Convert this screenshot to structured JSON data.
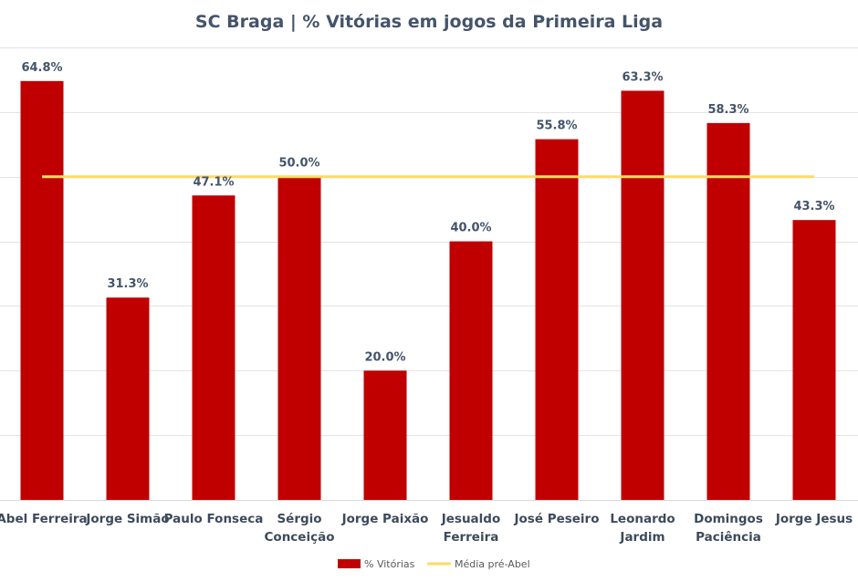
{
  "chart_data": {
    "type": "bar",
    "title": "SC Braga | % Vitórias em jogos da Primeira Liga",
    "categories": [
      [
        "Abel Ferreira"
      ],
      [
        "Jorge Simão"
      ],
      [
        "Paulo Fonseca"
      ],
      [
        "Sérgio",
        "Conceição"
      ],
      [
        "Jorge Paixão"
      ],
      [
        "Jesualdo",
        "Ferreira"
      ],
      [
        "José Peseiro"
      ],
      [
        "Leonardo",
        "Jardim"
      ],
      [
        "Domingos",
        "Paciência"
      ],
      [
        "Jorge Jesus"
      ]
    ],
    "series": [
      {
        "name": "% Vitórias",
        "type": "bar",
        "color": "#c00000",
        "values": [
          64.8,
          31.3,
          47.1,
          50.0,
          20.0,
          40.0,
          55.8,
          63.3,
          58.3,
          43.3
        ],
        "labels": [
          "64.8%",
          "31.3%",
          "47.1%",
          "50.0%",
          "20.0%",
          "40.0%",
          "55.8%",
          "63.3%",
          "58.3%",
          "43.3%"
        ]
      },
      {
        "name": "Média pré-Abel",
        "type": "line",
        "color": "#ffd966",
        "value": 50.0
      }
    ],
    "ylim": [
      0,
      70
    ],
    "gridlines": [
      0,
      10,
      20,
      30,
      40,
      50,
      60,
      70
    ],
    "xlabel": "",
    "ylabel": "",
    "legend_position": "bottom"
  }
}
